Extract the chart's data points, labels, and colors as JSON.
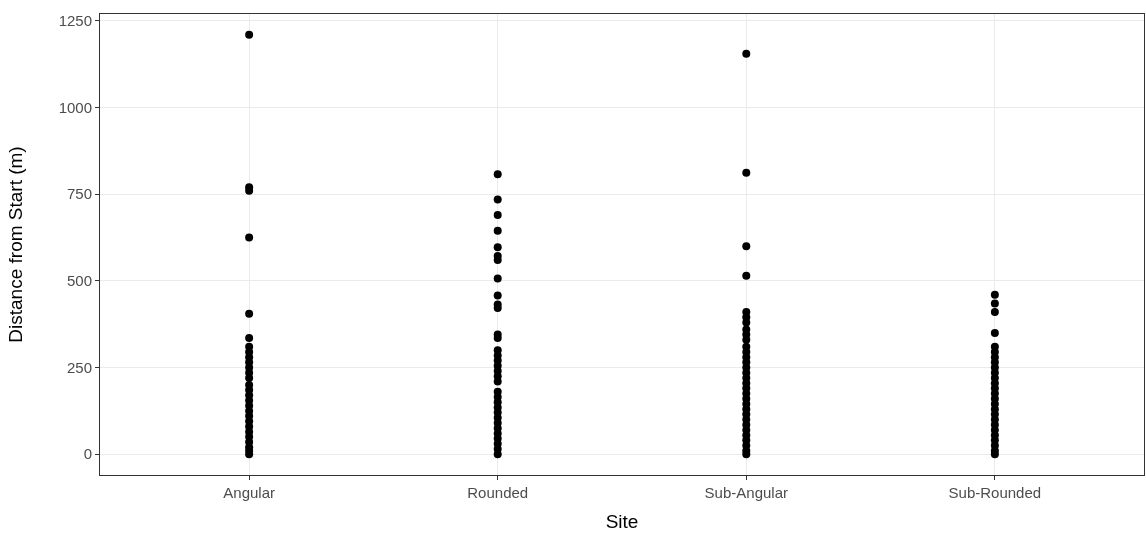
{
  "chart_data": {
    "type": "scatter",
    "xlabel": "Site",
    "ylabel": "Distance from Start (m)",
    "categories": [
      "Angular",
      "Rounded",
      "Sub-Angular",
      "Sub-Rounded"
    ],
    "series": [
      {
        "color": "#000000",
        "x": [
          "Angular",
          "Angular",
          "Angular",
          "Angular",
          "Angular",
          "Angular",
          "Angular",
          "Angular",
          "Angular",
          "Angular",
          "Angular",
          "Angular",
          "Angular",
          "Angular",
          "Angular",
          "Angular",
          "Angular",
          "Angular",
          "Angular",
          "Angular",
          "Angular",
          "Angular",
          "Angular",
          "Angular",
          "Angular",
          "Angular",
          "Angular",
          "Angular",
          "Rounded",
          "Rounded",
          "Rounded",
          "Rounded",
          "Rounded",
          "Rounded",
          "Rounded",
          "Rounded",
          "Rounded",
          "Rounded",
          "Rounded",
          "Rounded",
          "Rounded",
          "Rounded",
          "Rounded",
          "Rounded",
          "Rounded",
          "Rounded",
          "Rounded",
          "Rounded",
          "Rounded",
          "Rounded",
          "Rounded",
          "Rounded",
          "Rounded",
          "Rounded",
          "Rounded",
          "Rounded",
          "Rounded",
          "Rounded",
          "Rounded",
          "Rounded",
          "Rounded",
          "Sub-Angular",
          "Sub-Angular",
          "Sub-Angular",
          "Sub-Angular",
          "Sub-Angular",
          "Sub-Angular",
          "Sub-Angular",
          "Sub-Angular",
          "Sub-Angular",
          "Sub-Angular",
          "Sub-Angular",
          "Sub-Angular",
          "Sub-Angular",
          "Sub-Angular",
          "Sub-Angular",
          "Sub-Angular",
          "Sub-Angular",
          "Sub-Angular",
          "Sub-Angular",
          "Sub-Angular",
          "Sub-Angular",
          "Sub-Angular",
          "Sub-Angular",
          "Sub-Angular",
          "Sub-Angular",
          "Sub-Angular",
          "Sub-Angular",
          "Sub-Angular",
          "Sub-Angular",
          "Sub-Angular",
          "Sub-Angular",
          "Sub-Angular",
          "Sub-Rounded",
          "Sub-Rounded",
          "Sub-Rounded",
          "Sub-Rounded",
          "Sub-Rounded",
          "Sub-Rounded",
          "Sub-Rounded",
          "Sub-Rounded",
          "Sub-Rounded",
          "Sub-Rounded",
          "Sub-Rounded",
          "Sub-Rounded",
          "Sub-Rounded",
          "Sub-Rounded",
          "Sub-Rounded",
          "Sub-Rounded",
          "Sub-Rounded",
          "Sub-Rounded",
          "Sub-Rounded",
          "Sub-Rounded",
          "Sub-Rounded",
          "Sub-Rounded",
          "Sub-Rounded",
          "Sub-Rounded",
          "Sub-Rounded",
          "Sub-Rounded"
        ],
        "values": [
          1210,
          770,
          760,
          625,
          405,
          335,
          310,
          295,
          280,
          265,
          250,
          235,
          220,
          200,
          185,
          170,
          155,
          140,
          125,
          110,
          95,
          80,
          65,
          50,
          35,
          20,
          10,
          0,
          808,
          735,
          690,
          645,
          597,
          572,
          560,
          507,
          458,
          432,
          422,
          345,
          335,
          300,
          285,
          270,
          255,
          240,
          225,
          210,
          180,
          165,
          150,
          135,
          120,
          105,
          90,
          75,
          60,
          45,
          30,
          15,
          0,
          1155,
          812,
          600,
          515,
          410,
          395,
          380,
          360,
          345,
          330,
          310,
          295,
          280,
          265,
          250,
          235,
          220,
          205,
          190,
          175,
          160,
          145,
          130,
          115,
          100,
          85,
          70,
          55,
          40,
          25,
          10,
          0,
          460,
          435,
          410,
          350,
          310,
          295,
          280,
          265,
          250,
          235,
          220,
          205,
          190,
          175,
          160,
          145,
          130,
          115,
          100,
          85,
          70,
          55,
          40,
          25,
          10,
          0
        ]
      }
    ],
    "ylim": [
      -60,
      1270
    ],
    "yticks": [
      0,
      250,
      500,
      750,
      1000,
      1250
    ],
    "grid": true,
    "marker": "circle"
  }
}
